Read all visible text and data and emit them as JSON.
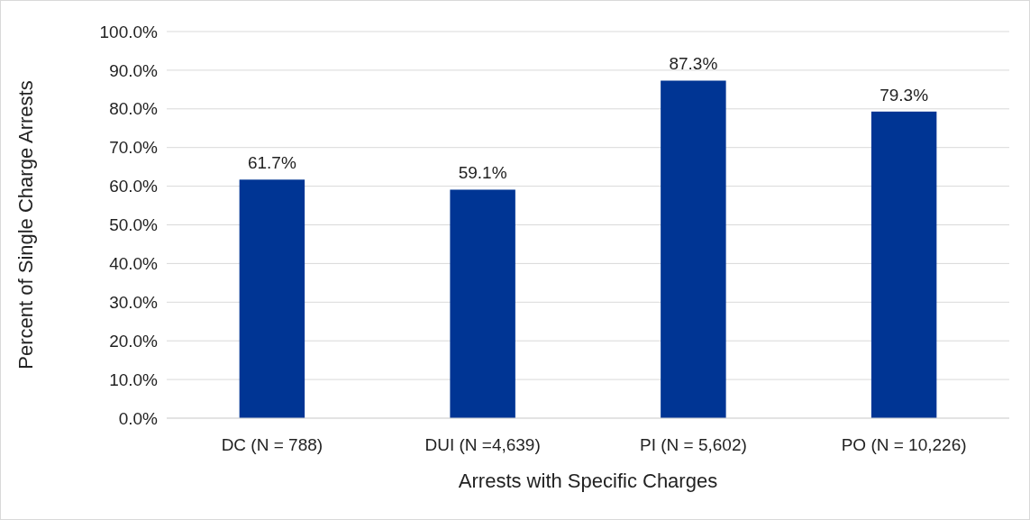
{
  "chart_data": {
    "type": "bar",
    "xlabel": "Arrests with Specific Charges",
    "ylabel": "Percent of Single Charge Arrests",
    "categories": [
      "DC (N = 788)",
      "DUI (N =4,639)",
      "PI (N = 5,602)",
      "PO (N = 10,226)"
    ],
    "values": [
      61.7,
      59.1,
      87.3,
      79.3
    ],
    "color": "#003594",
    "value_labels": [
      "61.7%",
      "59.1%",
      "87.3%",
      "79.3%"
    ],
    "ylim": [
      0,
      100
    ],
    "yticks": [
      {
        "value": 0,
        "label": "0.0%"
      },
      {
        "value": 10,
        "label": "10.0%"
      },
      {
        "value": 20,
        "label": "20.0%"
      },
      {
        "value": 30,
        "label": "30.0%"
      },
      {
        "value": 40,
        "label": "40.0%"
      },
      {
        "value": 50,
        "label": "50.0%"
      },
      {
        "value": 60,
        "label": "60.0%"
      },
      {
        "value": 70,
        "label": "70.0%"
      },
      {
        "value": 80,
        "label": "80.0%"
      },
      {
        "value": 90,
        "label": "90.0%"
      },
      {
        "value": 100,
        "label": "100.0%"
      }
    ],
    "grid": "y"
  }
}
